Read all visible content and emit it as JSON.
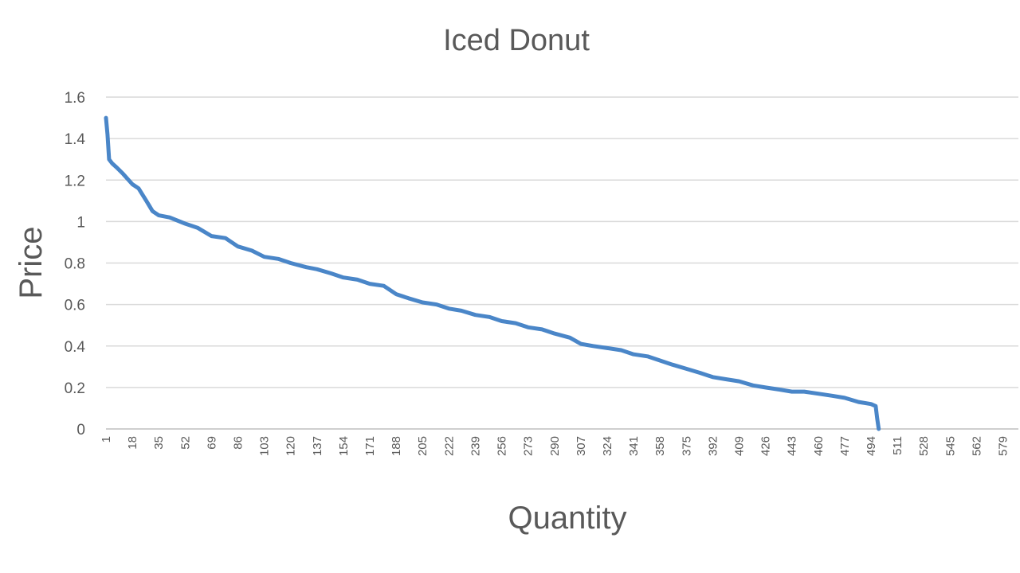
{
  "chart_data": {
    "type": "line",
    "title": "Iced Donut",
    "xlabel": "Quantity",
    "ylabel": "Price",
    "ylim": [
      0,
      1.6
    ],
    "yticks": [
      "0",
      "0.2",
      "0.4",
      "0.6",
      "0.8",
      "1",
      "1.2",
      "1.4",
      "1.6"
    ],
    "xlim": [
      1,
      589
    ],
    "xticks": [
      "1",
      "18",
      "35",
      "52",
      "69",
      "86",
      "103",
      "120",
      "137",
      "154",
      "171",
      "188",
      "205",
      "222",
      "239",
      "256",
      "273",
      "290",
      "307",
      "324",
      "341",
      "358",
      "375",
      "392",
      "409",
      "426",
      "443",
      "460",
      "477",
      "494",
      "511",
      "528",
      "545",
      "562",
      "579"
    ],
    "grid": "horizontal",
    "legend": "none",
    "series": [
      {
        "color": "#4a86c8",
        "x": [
          1,
          2,
          3,
          5,
          8,
          12,
          18,
          22,
          27,
          31,
          35,
          42,
          52,
          60,
          69,
          78,
          86,
          95,
          103,
          112,
          120,
          130,
          137,
          146,
          154,
          163,
          171,
          180,
          188,
          196,
          205,
          214,
          222,
          230,
          239,
          248,
          256,
          265,
          273,
          282,
          290,
          300,
          307,
          315,
          324,
          333,
          341,
          350,
          358,
          366,
          375,
          384,
          392,
          400,
          409,
          418,
          426,
          435,
          443,
          451,
          460,
          469,
          477,
          486,
          494,
          497,
          498,
          499
        ],
        "y": [
          1.5,
          1.42,
          1.3,
          1.28,
          1.26,
          1.23,
          1.18,
          1.16,
          1.1,
          1.05,
          1.03,
          1.02,
          0.99,
          0.97,
          0.93,
          0.92,
          0.88,
          0.86,
          0.83,
          0.82,
          0.8,
          0.78,
          0.77,
          0.75,
          0.73,
          0.72,
          0.7,
          0.69,
          0.65,
          0.63,
          0.61,
          0.6,
          0.58,
          0.57,
          0.55,
          0.54,
          0.52,
          0.51,
          0.49,
          0.48,
          0.46,
          0.44,
          0.41,
          0.4,
          0.39,
          0.38,
          0.36,
          0.35,
          0.33,
          0.31,
          0.29,
          0.27,
          0.25,
          0.24,
          0.23,
          0.21,
          0.2,
          0.19,
          0.18,
          0.18,
          0.17,
          0.16,
          0.15,
          0.13,
          0.12,
          0.11,
          0.05,
          0
        ]
      }
    ]
  }
}
